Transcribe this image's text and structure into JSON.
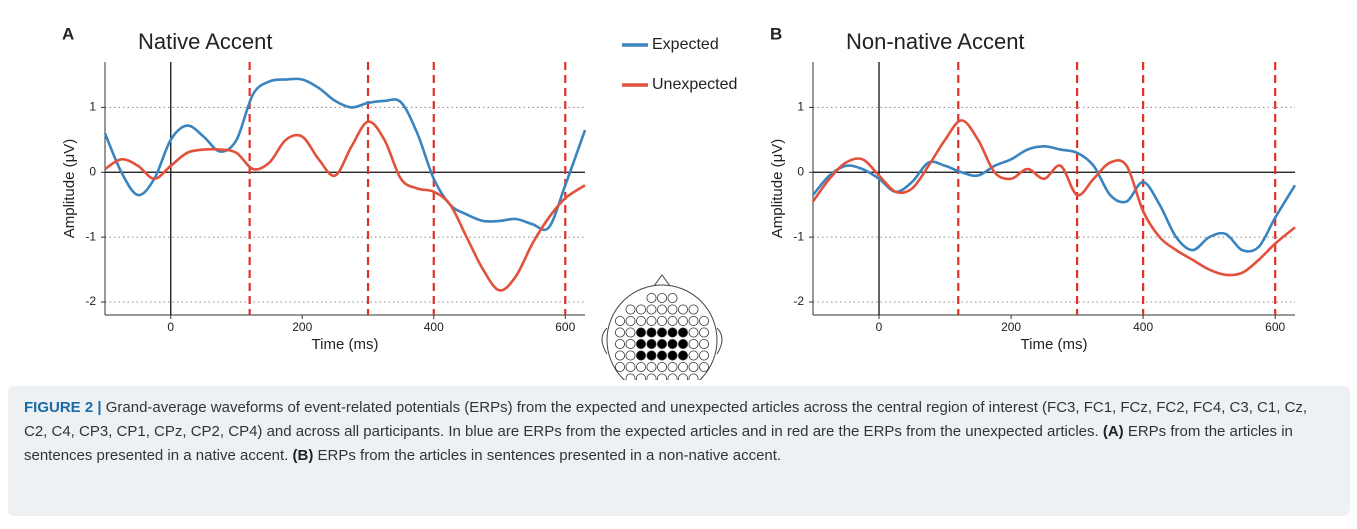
{
  "chart_data": [
    {
      "type": "line",
      "panel": "A",
      "title": "Native Accent",
      "x_label": "Time (ms)",
      "y_label": "Amplitude (μV)",
      "x": [
        -100,
        -75,
        -50,
        -25,
        0,
        25,
        50,
        75,
        100,
        125,
        150,
        175,
        200,
        225,
        250,
        275,
        300,
        325,
        350,
        375,
        400,
        425,
        450,
        475,
        500,
        525,
        550,
        575,
        600,
        630
      ],
      "series": [
        {
          "name": "Expected",
          "color": "#3a84bf",
          "values": [
            0.6,
            0.0,
            -0.35,
            -0.1,
            0.5,
            0.72,
            0.55,
            0.32,
            0.5,
            1.2,
            1.4,
            1.43,
            1.43,
            1.3,
            1.1,
            1.0,
            1.07,
            1.1,
            1.08,
            0.6,
            -0.1,
            -0.5,
            -0.65,
            -0.75,
            -0.75,
            -0.72,
            -0.8,
            -0.85,
            -0.2,
            0.65
          ]
        },
        {
          "name": "Unexpected",
          "color": "#e2513b",
          "values": [
            0.05,
            0.2,
            0.1,
            -0.1,
            0.1,
            0.3,
            0.35,
            0.35,
            0.3,
            0.05,
            0.15,
            0.5,
            0.55,
            0.2,
            -0.05,
            0.4,
            0.78,
            0.5,
            -0.1,
            -0.25,
            -0.3,
            -0.5,
            -1.0,
            -1.5,
            -1.82,
            -1.6,
            -1.1,
            -0.7,
            -0.4,
            -0.2
          ]
        }
      ],
      "vlines": [
        120,
        300,
        400,
        600
      ],
      "vline_color": "#e0302a",
      "xlim": [
        -100,
        630
      ],
      "ylim": [
        -2.2,
        1.7
      ],
      "xticks": [
        0,
        200,
        400,
        600
      ],
      "yticks": [
        -2,
        -1,
        0,
        1
      ],
      "grid": true
    },
    {
      "type": "line",
      "panel": "B",
      "title": "Non-native Accent",
      "x_label": "Time (ms)",
      "y_label": "Amplitude (μV)",
      "x": [
        -100,
        -75,
        -50,
        -25,
        0,
        25,
        50,
        75,
        100,
        125,
        150,
        175,
        200,
        225,
        250,
        275,
        300,
        325,
        350,
        375,
        400,
        425,
        450,
        475,
        500,
        525,
        550,
        575,
        600,
        630
      ],
      "series": [
        {
          "color": "#3a84bf",
          "values": [
            -0.35,
            -0.05,
            0.1,
            0.05,
            -0.1,
            -0.3,
            -0.15,
            0.15,
            0.1,
            0.0,
            -0.05,
            0.1,
            0.2,
            0.35,
            0.4,
            0.35,
            0.3,
            0.1,
            -0.35,
            -0.45,
            -0.15,
            -0.5,
            -1.0,
            -1.2,
            -1.0,
            -0.95,
            -1.2,
            -1.15,
            -0.7,
            -0.2
          ]
        },
        {
          "color": "#e2513b",
          "values": [
            -0.45,
            -0.1,
            0.15,
            0.2,
            -0.05,
            -0.3,
            -0.25,
            0.1,
            0.5,
            0.8,
            0.5,
            0.0,
            -0.1,
            0.05,
            -0.1,
            0.1,
            -0.35,
            -0.1,
            0.15,
            0.1,
            -0.6,
            -1.0,
            -1.2,
            -1.35,
            -1.5,
            -1.58,
            -1.55,
            -1.35,
            -1.1,
            -0.85
          ]
        }
      ],
      "vlines": [
        120,
        300,
        400,
        600
      ],
      "vline_color": "#e0302a",
      "xlim": [
        -100,
        630
      ],
      "ylim": [
        -2.2,
        1.7
      ],
      "xticks": [
        0,
        200,
        400,
        600
      ],
      "yticks": [
        -2,
        -1,
        0,
        1
      ],
      "grid": true
    }
  ],
  "caption": {
    "label": "FIGURE 2 |",
    "parts": [
      "Grand-average waveforms of event-related potentials (ERPs) from the expected and unexpected articles across the central region of interest (FC3, FC1, FCz, FC2, FC4, C3, C1, Cz, C2, C4, CP3, CP1, CPz, CP2, CP4) and across all participants. In blue are ERPs from the expected articles and in red are the ERPs from the unexpected articles.",
      "(A)",
      "ERPs from the articles in sentences presented in a native accent.",
      "(B)",
      "ERPs from the articles in sentences presented in a non-native accent."
    ]
  }
}
